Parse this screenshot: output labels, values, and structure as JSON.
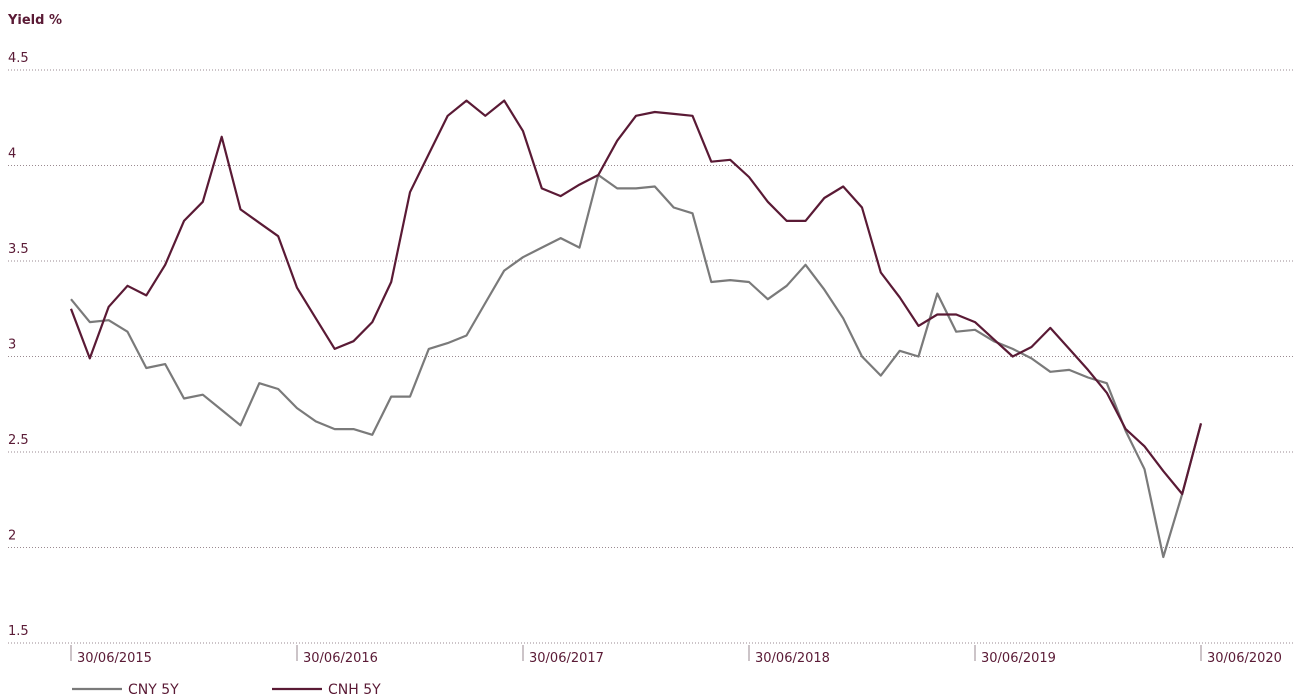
{
  "chart_data": {
    "type": "line",
    "y_label": "Yield %",
    "categories": [
      "30/06/2015",
      null,
      null,
      null,
      null,
      null,
      null,
      null,
      null,
      null,
      null,
      null,
      "30/06/2016",
      null,
      null,
      null,
      null,
      null,
      null,
      null,
      null,
      null,
      null,
      null,
      "30/06/2017",
      null,
      null,
      null,
      null,
      null,
      null,
      null,
      null,
      null,
      null,
      null,
      "30/06/2018",
      null,
      null,
      null,
      null,
      null,
      null,
      null,
      null,
      null,
      null,
      null,
      "30/06/2019",
      null,
      null,
      null,
      null,
      null,
      null,
      null,
      null,
      null,
      null,
      null,
      "30/06/2020"
    ],
    "series": [
      {
        "name": "CNY 5Y",
        "color": "#7a7a7a",
        "values": [
          3.3,
          3.18,
          3.19,
          3.13,
          2.94,
          2.96,
          2.78,
          2.8,
          2.72,
          2.64,
          2.86,
          2.83,
          2.73,
          2.66,
          2.62,
          2.62,
          2.59,
          2.79,
          2.79,
          3.04,
          3.07,
          3.11,
          3.28,
          3.45,
          3.52,
          3.57,
          3.62,
          3.57,
          3.95,
          3.88,
          3.88,
          3.89,
          3.78,
          3.75,
          3.39,
          3.4,
          3.39,
          3.3,
          3.37,
          3.48,
          3.35,
          3.2,
          3.0,
          2.9,
          3.03,
          3.0,
          3.33,
          3.13,
          3.14,
          3.08,
          3.04,
          2.99,
          2.92,
          2.93,
          2.89,
          2.86,
          2.61,
          2.41,
          1.95,
          2.28,
          2.65
        ]
      },
      {
        "name": "CNH 5Y",
        "color": "#5a1a35",
        "values": [
          3.25,
          2.99,
          3.26,
          3.37,
          3.32,
          3.48,
          3.71,
          3.81,
          4.15,
          3.77,
          3.7,
          3.63,
          3.36,
          3.2,
          3.04,
          3.08,
          3.18,
          3.39,
          3.86,
          4.06,
          4.26,
          4.34,
          4.26,
          4.34,
          4.18,
          3.88,
          3.84,
          3.9,
          3.95,
          4.13,
          4.26,
          4.28,
          4.27,
          4.26,
          4.02,
          4.03,
          3.94,
          3.81,
          3.71,
          3.71,
          3.83,
          3.89,
          3.78,
          3.44,
          3.31,
          3.16,
          3.22,
          3.22,
          3.18,
          3.09,
          3.0,
          3.05,
          3.15,
          3.04,
          2.93,
          2.81,
          2.62,
          2.53,
          2.4,
          2.28,
          2.65
        ]
      }
    ],
    "ylim": [
      1.5,
      4.5
    ],
    "yticks": [
      1.5,
      2,
      2.5,
      3,
      3.5,
      4,
      4.5
    ],
    "grid": true,
    "legend": "bottom-left"
  }
}
